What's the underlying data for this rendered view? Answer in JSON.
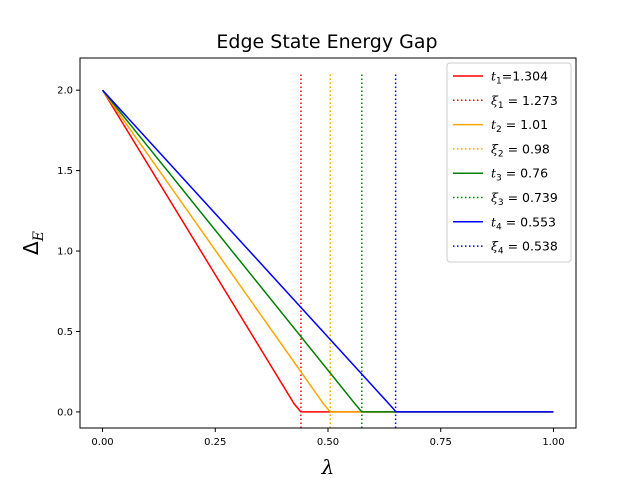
{
  "chart_data": {
    "type": "line",
    "title": "Edge State Energy Gap",
    "xlabel": "λ",
    "ylabel_main": "Δ",
    "ylabel_sub": "E",
    "xlim": [
      -0.05,
      1.05
    ],
    "ylim": [
      -0.1,
      2.2
    ],
    "xticks": [
      0.0,
      0.25,
      0.5,
      0.75,
      1.0
    ],
    "xtick_labels": [
      "0.00",
      "0.25",
      "0.50",
      "0.75",
      "1.00"
    ],
    "yticks": [
      0.0,
      0.5,
      1.0,
      1.5,
      2.0
    ],
    "ytick_labels": [
      "0.0",
      "0.5",
      "1.0",
      "1.5",
      "2.0"
    ],
    "legend_position": "top-right",
    "series": [
      {
        "name": "t1=1.304",
        "sym": "t",
        "sub": "1",
        "value": "=1.304",
        "color": "#ff0000",
        "x": [
          0.0,
          0.425,
          0.44,
          0.45,
          1.0
        ],
        "y": [
          2.0,
          0.05,
          0.0,
          0.0,
          0.0
        ]
      },
      {
        "name": "t2 = 1.01",
        "sym": "t",
        "sub": "2",
        "value": " = 1.01",
        "color": "#ffa500",
        "x": [
          0.0,
          0.49,
          0.505,
          0.515,
          1.0
        ],
        "y": [
          2.0,
          0.05,
          0.0,
          0.0,
          0.0
        ]
      },
      {
        "name": "t3 = 0.76",
        "sym": "t",
        "sub": "3",
        "value": " = 0.76",
        "color": "#008000",
        "x": [
          0.0,
          0.56,
          0.575,
          0.585,
          1.0
        ],
        "y": [
          2.0,
          0.05,
          0.0,
          0.0,
          0.0
        ]
      },
      {
        "name": "t4 = 0.553",
        "sym": "t",
        "sub": "4",
        "value": " = 0.553",
        "color": "#0000ff",
        "x": [
          0.0,
          0.645,
          0.65,
          0.66,
          1.0
        ],
        "y": [
          2.0,
          0.02,
          0.0,
          0.0,
          0.0
        ]
      }
    ],
    "vlines": [
      {
        "name": "ξ1 = 1.273",
        "sym": "ξ",
        "sub": "1",
        "value": " = 1.273",
        "color": "#ff0000",
        "x": 0.44,
        "y": [
          -0.1,
          2.1
        ]
      },
      {
        "name": "ξ2 = 0.98",
        "sym": "ξ",
        "sub": "2",
        "value": " = 0.98",
        "color": "#ffa500",
        "x": 0.505,
        "y": [
          -0.1,
          2.1
        ]
      },
      {
        "name": "ξ3 = 0.739",
        "sym": "ξ",
        "sub": "3",
        "value": " = 0.739",
        "color": "#008000",
        "x": 0.575,
        "y": [
          -0.1,
          2.1
        ]
      },
      {
        "name": "ξ4 = 0.538",
        "sym": "ξ",
        "sub": "4",
        "value": " = 0.538",
        "color": "#0000ff",
        "x": 0.65,
        "y": [
          -0.1,
          2.1
        ]
      }
    ]
  }
}
